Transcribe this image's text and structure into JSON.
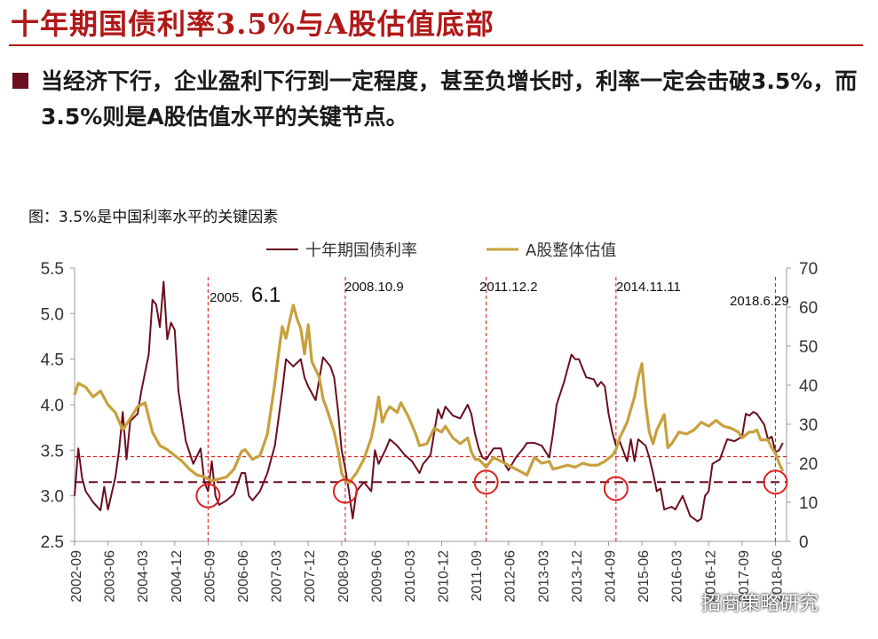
{
  "slide": {
    "title": "十年期国债利率3.5%与A股估值底部",
    "bullet": "当经济下行，企业盈利下行到一定程度，甚至负增长时，利率一定会击破3.5%，而3.5%则是A股估值水平的关键节点。",
    "caption": "图：3.5%是中国利率水平的关键因素",
    "watermark": "招商策略研究"
  },
  "colors": {
    "title": "#b01818",
    "yield": "#6b0e1e",
    "valuation": "#c8a03c",
    "reference": "#e02020",
    "bottom_line": "#6b0e1e"
  },
  "chart_data": {
    "type": "line",
    "legend": [
      "十年期国债利率",
      "A股整体估值"
    ],
    "legend_position": "top",
    "x_ticks": [
      "2002-09",
      "2003-06",
      "2004-03",
      "2004-12",
      "2005-09",
      "2006-06",
      "2007-03",
      "2007-12",
      "2008-09",
      "2009-06",
      "2010-03",
      "2010-12",
      "2011-09",
      "2012-06",
      "2013-03",
      "2013-12",
      "2014-09",
      "2015-06",
      "2016-03",
      "2016-12",
      "2017-09",
      "2018-06"
    ],
    "y_left_ticks": [
      "2.5",
      "3.0",
      "3.5",
      "4.0",
      "4.5",
      "5.0",
      "5.5"
    ],
    "y_right_ticks": [
      "0",
      "10",
      "20",
      "30",
      "40",
      "50",
      "60",
      "70"
    ],
    "ylim_left": [
      2.5,
      5.5
    ],
    "ylim_right": [
      0,
      70
    ],
    "reference_line_left": 3.15,
    "reference_line_right": 3.43,
    "annotations": [
      {
        "date": "2005-09",
        "label_small": "2005.",
        "label_big": "6.1"
      },
      {
        "date": "2008-10",
        "label_small": "2008.10.9",
        "label_big": ""
      },
      {
        "date": "2011-12",
        "label_small": "2011.12.2",
        "label_big": ""
      },
      {
        "date": "2014-11",
        "label_small": "2014.11.11",
        "label_big": ""
      },
      {
        "date": "2018-06",
        "label_small": "2018.6.29",
        "label_big": ""
      }
    ],
    "circle_markers": [
      {
        "date": "2005-09",
        "value": 3.0
      },
      {
        "date": "2008-10",
        "value": 3.05
      },
      {
        "date": "2011-12",
        "value": 3.15
      },
      {
        "date": "2014-11",
        "value": 3.08
      },
      {
        "date": "2018-06",
        "value": 3.15
      }
    ],
    "series": [
      {
        "name": "十年期国债利率",
        "axis": "left",
        "points": [
          [
            "2002-09",
            3.0
          ],
          [
            "2002-10",
            3.52
          ],
          [
            "2002-11",
            3.2
          ],
          [
            "2002-12",
            3.05
          ],
          [
            "2003-02",
            2.93
          ],
          [
            "2003-04",
            2.84
          ],
          [
            "2003-05",
            3.1
          ],
          [
            "2003-06",
            2.85
          ],
          [
            "2003-08",
            3.2
          ],
          [
            "2003-09",
            3.5
          ],
          [
            "2003-10",
            3.92
          ],
          [
            "2003-11",
            3.4
          ],
          [
            "2003-12",
            3.82
          ],
          [
            "2004-02",
            3.9
          ],
          [
            "2004-03",
            4.15
          ],
          [
            "2004-05",
            4.55
          ],
          [
            "2004-06",
            5.15
          ],
          [
            "2004-07",
            5.1
          ],
          [
            "2004-08",
            4.85
          ],
          [
            "2004-09",
            5.35
          ],
          [
            "2004-10",
            4.72
          ],
          [
            "2004-11",
            4.9
          ],
          [
            "2004-12",
            4.82
          ],
          [
            "2005-01",
            4.15
          ],
          [
            "2005-03",
            3.6
          ],
          [
            "2005-05",
            3.35
          ],
          [
            "2005-07",
            3.52
          ],
          [
            "2005-08",
            3.15
          ],
          [
            "2005-09",
            3.05
          ],
          [
            "2005-10",
            3.38
          ],
          [
            "2005-11",
            3.0
          ],
          [
            "2005-12",
            2.9
          ],
          [
            "2006-02",
            2.95
          ],
          [
            "2006-04",
            3.02
          ],
          [
            "2006-06",
            3.25
          ],
          [
            "2006-07",
            3.25
          ],
          [
            "2006-08",
            3.0
          ],
          [
            "2006-09",
            2.95
          ],
          [
            "2006-11",
            3.05
          ],
          [
            "2007-01",
            3.25
          ],
          [
            "2007-03",
            3.55
          ],
          [
            "2007-05",
            4.15
          ],
          [
            "2007-06",
            4.5
          ],
          [
            "2007-08",
            4.42
          ],
          [
            "2007-10",
            4.5
          ],
          [
            "2007-11",
            4.3
          ],
          [
            "2007-12",
            4.2
          ],
          [
            "2008-02",
            4.05
          ],
          [
            "2008-04",
            4.52
          ],
          [
            "2008-06",
            4.42
          ],
          [
            "2008-07",
            4.3
          ],
          [
            "2008-08",
            3.95
          ],
          [
            "2008-09",
            3.5
          ],
          [
            "2008-10",
            3.3
          ],
          [
            "2008-11",
            3.05
          ],
          [
            "2008-12",
            2.75
          ],
          [
            "2009-01",
            3.05
          ],
          [
            "2009-03",
            3.15
          ],
          [
            "2009-05",
            3.05
          ],
          [
            "2009-06",
            3.5
          ],
          [
            "2009-07",
            3.35
          ],
          [
            "2009-09",
            3.52
          ],
          [
            "2009-10",
            3.62
          ],
          [
            "2009-12",
            3.55
          ],
          [
            "2010-02",
            3.45
          ],
          [
            "2010-04",
            3.38
          ],
          [
            "2010-06",
            3.25
          ],
          [
            "2010-07",
            3.35
          ],
          [
            "2010-09",
            3.45
          ],
          [
            "2010-11",
            3.95
          ],
          [
            "2010-12",
            3.85
          ],
          [
            "2011-01",
            3.98
          ],
          [
            "2011-03",
            3.88
          ],
          [
            "2011-05",
            3.85
          ],
          [
            "2011-07",
            4.0
          ],
          [
            "2011-08",
            3.9
          ],
          [
            "2011-09",
            3.68
          ],
          [
            "2011-10",
            3.52
          ],
          [
            "2011-11",
            3.42
          ],
          [
            "2011-12",
            3.4
          ],
          [
            "2012-02",
            3.52
          ],
          [
            "2012-04",
            3.52
          ],
          [
            "2012-05",
            3.35
          ],
          [
            "2012-06",
            3.28
          ],
          [
            "2012-08",
            3.42
          ],
          [
            "2012-10",
            3.52
          ],
          [
            "2012-11",
            3.58
          ],
          [
            "2013-01",
            3.58
          ],
          [
            "2013-03",
            3.55
          ],
          [
            "2013-05",
            3.42
          ],
          [
            "2013-06",
            3.68
          ],
          [
            "2013-07",
            4.0
          ],
          [
            "2013-09",
            4.25
          ],
          [
            "2013-11",
            4.55
          ],
          [
            "2013-12",
            4.5
          ],
          [
            "2014-01",
            4.5
          ],
          [
            "2014-03",
            4.3
          ],
          [
            "2014-05",
            4.28
          ],
          [
            "2014-06",
            4.2
          ],
          [
            "2014-07",
            4.25
          ],
          [
            "2014-08",
            4.2
          ],
          [
            "2014-09",
            3.9
          ],
          [
            "2014-10",
            3.7
          ],
          [
            "2014-11",
            3.55
          ],
          [
            "2014-12",
            3.6
          ],
          [
            "2015-02",
            3.38
          ],
          [
            "2015-03",
            3.62
          ],
          [
            "2015-04",
            3.38
          ],
          [
            "2015-05",
            3.62
          ],
          [
            "2015-07",
            3.55
          ],
          [
            "2015-08",
            3.42
          ],
          [
            "2015-09",
            3.25
          ],
          [
            "2015-10",
            3.05
          ],
          [
            "2015-11",
            3.08
          ],
          [
            "2015-12",
            2.85
          ],
          [
            "2016-02",
            2.88
          ],
          [
            "2016-03",
            2.85
          ],
          [
            "2016-05",
            3.0
          ],
          [
            "2016-07",
            2.78
          ],
          [
            "2016-09",
            2.72
          ],
          [
            "2016-10",
            2.75
          ],
          [
            "2016-11",
            3.0
          ],
          [
            "2016-12",
            3.05
          ],
          [
            "2017-01",
            3.35
          ],
          [
            "2017-03",
            3.4
          ],
          [
            "2017-05",
            3.62
          ],
          [
            "2017-07",
            3.6
          ],
          [
            "2017-09",
            3.65
          ],
          [
            "2017-10",
            3.9
          ],
          [
            "2017-11",
            3.88
          ],
          [
            "2017-12",
            3.92
          ],
          [
            "2018-01",
            3.9
          ],
          [
            "2018-03",
            3.78
          ],
          [
            "2018-04",
            3.62
          ],
          [
            "2018-05",
            3.65
          ],
          [
            "2018-06",
            3.48
          ],
          [
            "2018-07",
            3.5
          ],
          [
            "2018-08",
            3.58
          ]
        ]
      },
      {
        "name": "A股整体估值",
        "axis": "right",
        "points": [
          [
            "2002-09",
            37.5
          ],
          [
            "2002-10",
            40.5
          ],
          [
            "2002-12",
            39.5
          ],
          [
            "2003-02",
            37.0
          ],
          [
            "2003-04",
            38.5
          ],
          [
            "2003-06",
            35.0
          ],
          [
            "2003-08",
            33.0
          ],
          [
            "2003-10",
            28.5
          ],
          [
            "2003-12",
            31.5
          ],
          [
            "2004-02",
            34.5
          ],
          [
            "2004-04",
            35.5
          ],
          [
            "2004-06",
            28.0
          ],
          [
            "2004-08",
            24.5
          ],
          [
            "2004-10",
            23.5
          ],
          [
            "2004-12",
            22.0
          ],
          [
            "2005-02",
            20.5
          ],
          [
            "2005-04",
            18.5
          ],
          [
            "2005-06",
            17.0
          ],
          [
            "2005-08",
            16.5
          ],
          [
            "2005-10",
            15.5
          ],
          [
            "2005-12",
            16.0
          ],
          [
            "2006-02",
            16.5
          ],
          [
            "2006-04",
            18.5
          ],
          [
            "2006-06",
            23.0
          ],
          [
            "2006-07",
            23.5
          ],
          [
            "2006-09",
            21.0
          ],
          [
            "2006-11",
            22.0
          ],
          [
            "2007-01",
            27.5
          ],
          [
            "2007-03",
            40.5
          ],
          [
            "2007-04",
            48.0
          ],
          [
            "2007-05",
            55.0
          ],
          [
            "2007-06",
            52.0
          ],
          [
            "2007-07",
            56.5
          ],
          [
            "2007-08",
            60.5
          ],
          [
            "2007-09",
            57.0
          ],
          [
            "2007-10",
            54.5
          ],
          [
            "2007-11",
            48.0
          ],
          [
            "2007-12",
            55.5
          ],
          [
            "2008-01",
            46.0
          ],
          [
            "2008-03",
            42.0
          ],
          [
            "2008-04",
            36.5
          ],
          [
            "2008-05",
            34.0
          ],
          [
            "2008-07",
            28.0
          ],
          [
            "2008-08",
            23.5
          ],
          [
            "2008-09",
            17.5
          ],
          [
            "2008-10",
            15.5
          ],
          [
            "2008-11",
            15.0
          ],
          [
            "2009-01",
            17.5
          ],
          [
            "2009-03",
            21.0
          ],
          [
            "2009-05",
            26.5
          ],
          [
            "2009-06",
            31.0
          ],
          [
            "2009-07",
            37.0
          ],
          [
            "2009-08",
            30.5
          ],
          [
            "2009-09",
            33.0
          ],
          [
            "2009-10",
            34.5
          ],
          [
            "2009-12",
            33.0
          ],
          [
            "2010-01",
            35.5
          ],
          [
            "2010-03",
            32.0
          ],
          [
            "2010-05",
            27.5
          ],
          [
            "2010-06",
            24.5
          ],
          [
            "2010-08",
            25.0
          ],
          [
            "2010-10",
            29.0
          ],
          [
            "2010-12",
            28.0
          ],
          [
            "2011-01",
            29.5
          ],
          [
            "2011-03",
            26.5
          ],
          [
            "2011-05",
            25.0
          ],
          [
            "2011-07",
            26.5
          ],
          [
            "2011-08",
            23.0
          ],
          [
            "2011-09",
            21.0
          ],
          [
            "2011-10",
            21.0
          ],
          [
            "2011-12",
            19.0
          ],
          [
            "2012-02",
            21.5
          ],
          [
            "2012-04",
            20.5
          ],
          [
            "2012-06",
            19.5
          ],
          [
            "2012-08",
            18.5
          ],
          [
            "2012-10",
            17.5
          ],
          [
            "2012-11",
            17.0
          ],
          [
            "2013-01",
            21.5
          ],
          [
            "2013-03",
            20.0
          ],
          [
            "2013-05",
            20.5
          ],
          [
            "2013-06",
            18.5
          ],
          [
            "2013-08",
            19.0
          ],
          [
            "2013-10",
            19.5
          ],
          [
            "2013-12",
            19.0
          ],
          [
            "2014-02",
            20.0
          ],
          [
            "2014-04",
            19.5
          ],
          [
            "2014-06",
            19.5
          ],
          [
            "2014-08",
            20.5
          ],
          [
            "2014-10",
            22.0
          ],
          [
            "2014-11",
            23.5
          ],
          [
            "2014-12",
            26.5
          ],
          [
            "2015-02",
            30.5
          ],
          [
            "2015-04",
            37.0
          ],
          [
            "2015-05",
            42.0
          ],
          [
            "2015-06",
            45.5
          ],
          [
            "2015-07",
            35.0
          ],
          [
            "2015-08",
            28.0
          ],
          [
            "2015-09",
            25.0
          ],
          [
            "2015-10",
            28.5
          ],
          [
            "2015-12",
            32.5
          ],
          [
            "2016-01",
            24.0
          ],
          [
            "2016-02",
            25.0
          ],
          [
            "2016-04",
            28.0
          ],
          [
            "2016-06",
            27.5
          ],
          [
            "2016-08",
            28.5
          ],
          [
            "2016-10",
            30.5
          ],
          [
            "2016-12",
            29.5
          ],
          [
            "2017-02",
            31.0
          ],
          [
            "2017-04",
            29.5
          ],
          [
            "2017-06",
            29.0
          ],
          [
            "2017-08",
            28.0
          ],
          [
            "2017-09",
            26.5
          ],
          [
            "2017-11",
            28.0
          ],
          [
            "2017-12",
            28.0
          ],
          [
            "2018-01",
            28.5
          ],
          [
            "2018-02",
            26.0
          ],
          [
            "2018-04",
            26.0
          ],
          [
            "2018-05",
            24.0
          ],
          [
            "2018-06",
            22.5
          ],
          [
            "2018-07",
            20.0
          ],
          [
            "2018-08",
            18.0
          ]
        ]
      }
    ]
  }
}
